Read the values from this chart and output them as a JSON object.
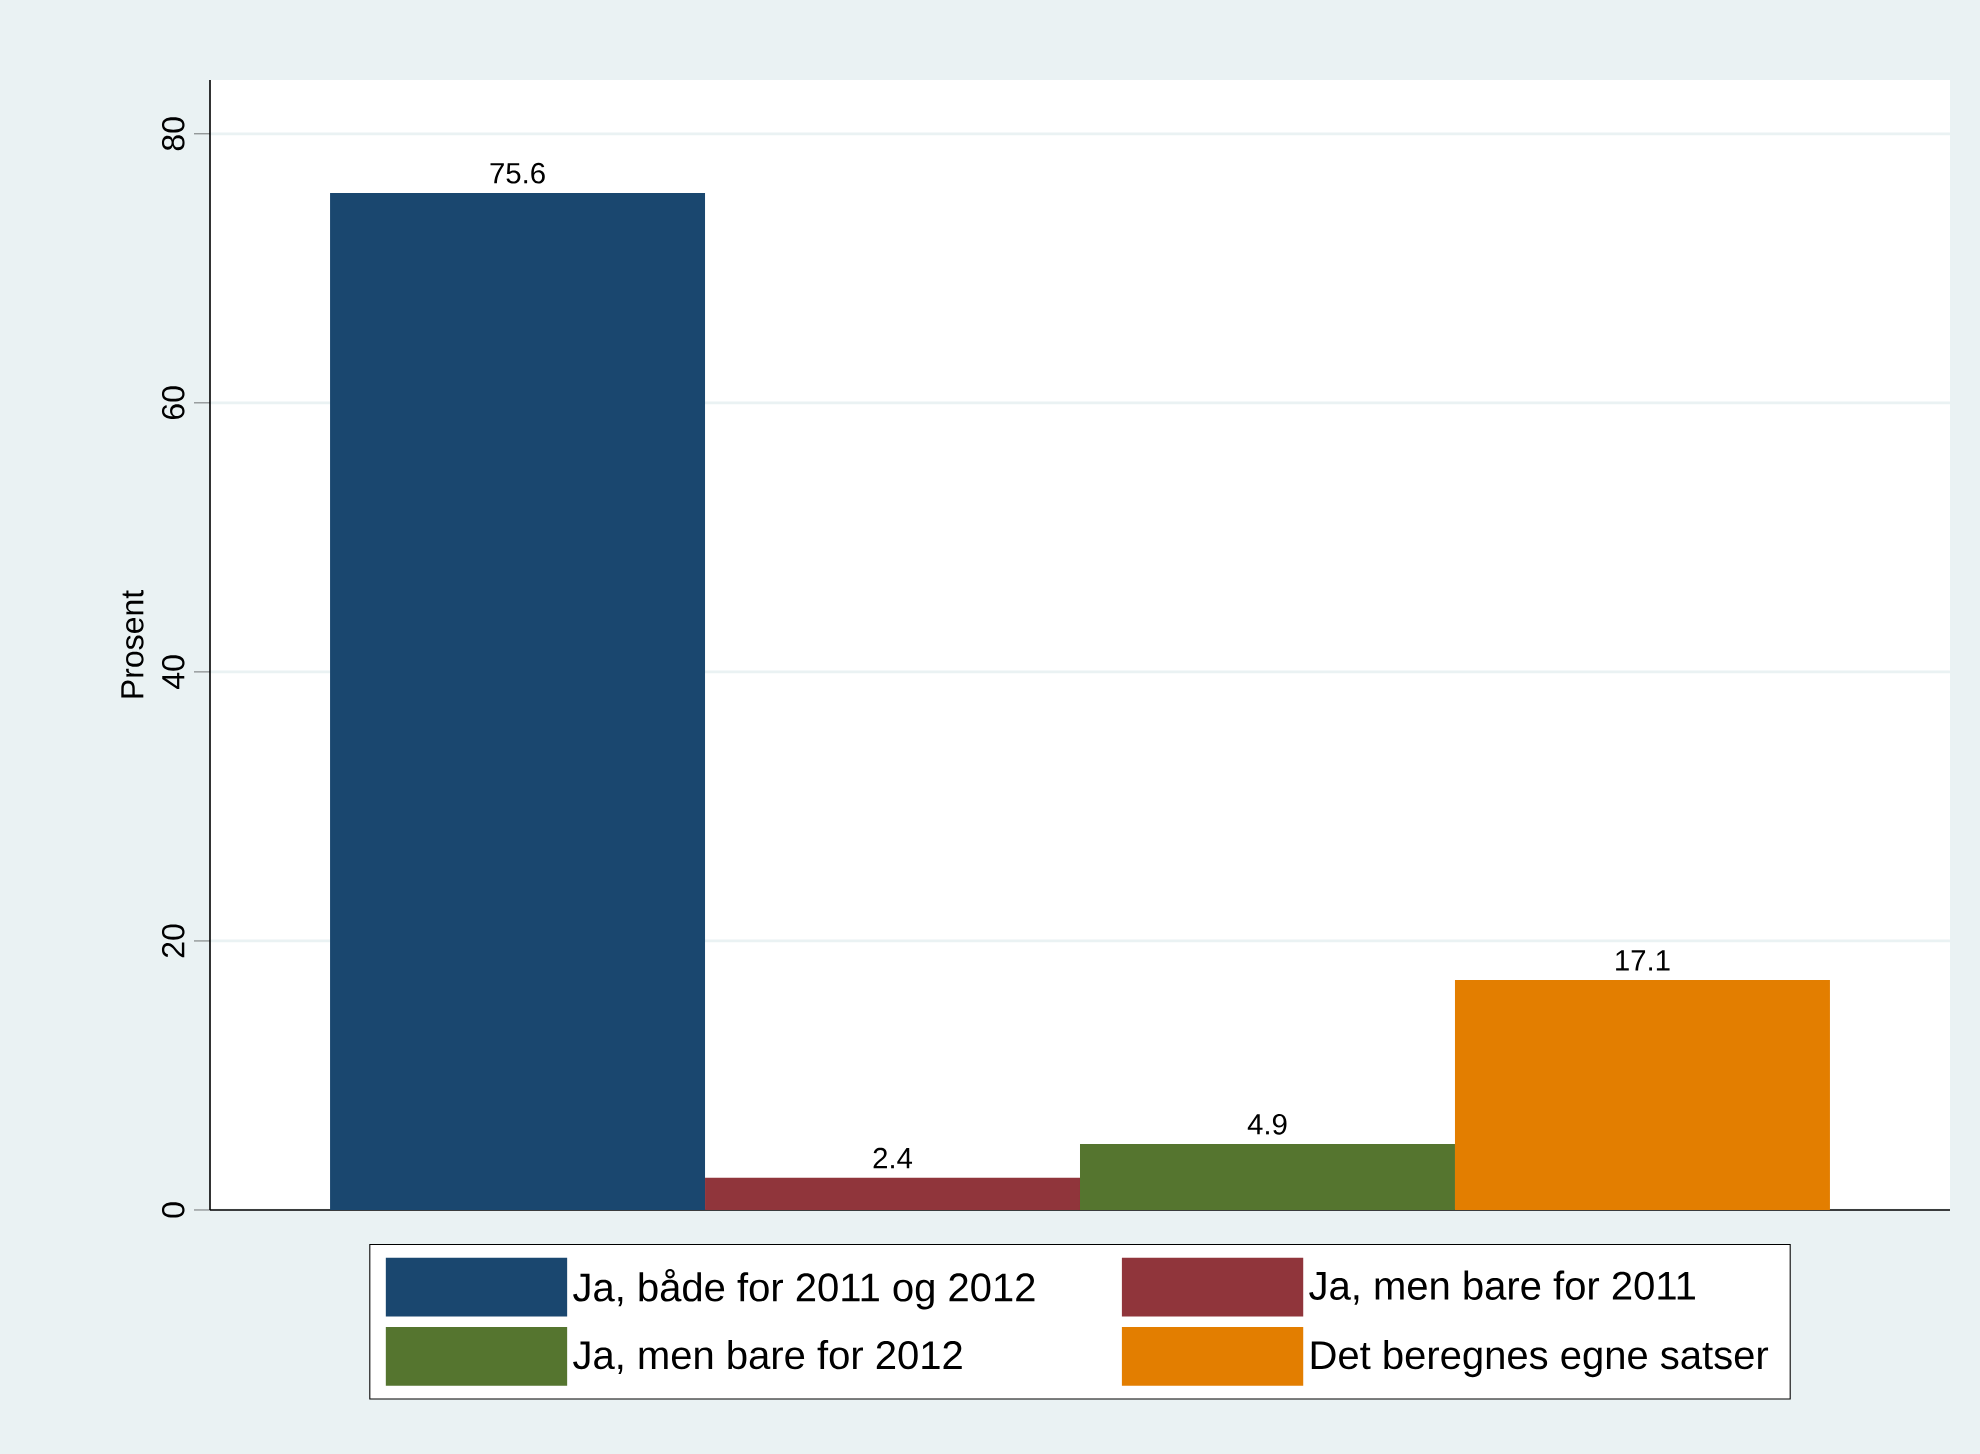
{
  "chart_data": {
    "type": "bar",
    "ylabel": "Prosent",
    "categories": [
      null
    ],
    "series": [
      {
        "name": "Ja, både for 2011 og 2012",
        "color": "#1a476f",
        "values": [
          75.6
        ]
      },
      {
        "name": "Ja, men bare for 2011",
        "color": "#90353b",
        "values": [
          2.4
        ]
      },
      {
        "name": "Ja, men bare for 2012",
        "color": "#55752f",
        "values": [
          4.9
        ]
      },
      {
        "name": "Det beregnes egne satser",
        "color": "#e37e00",
        "values": [
          17.1
        ]
      }
    ],
    "ylim": [
      0,
      84
    ],
    "yticks": [
      0,
      20,
      40,
      60,
      80
    ],
    "grid": "y",
    "legend": "bottom",
    "tick_labels": "y",
    "data_labels": true
  }
}
